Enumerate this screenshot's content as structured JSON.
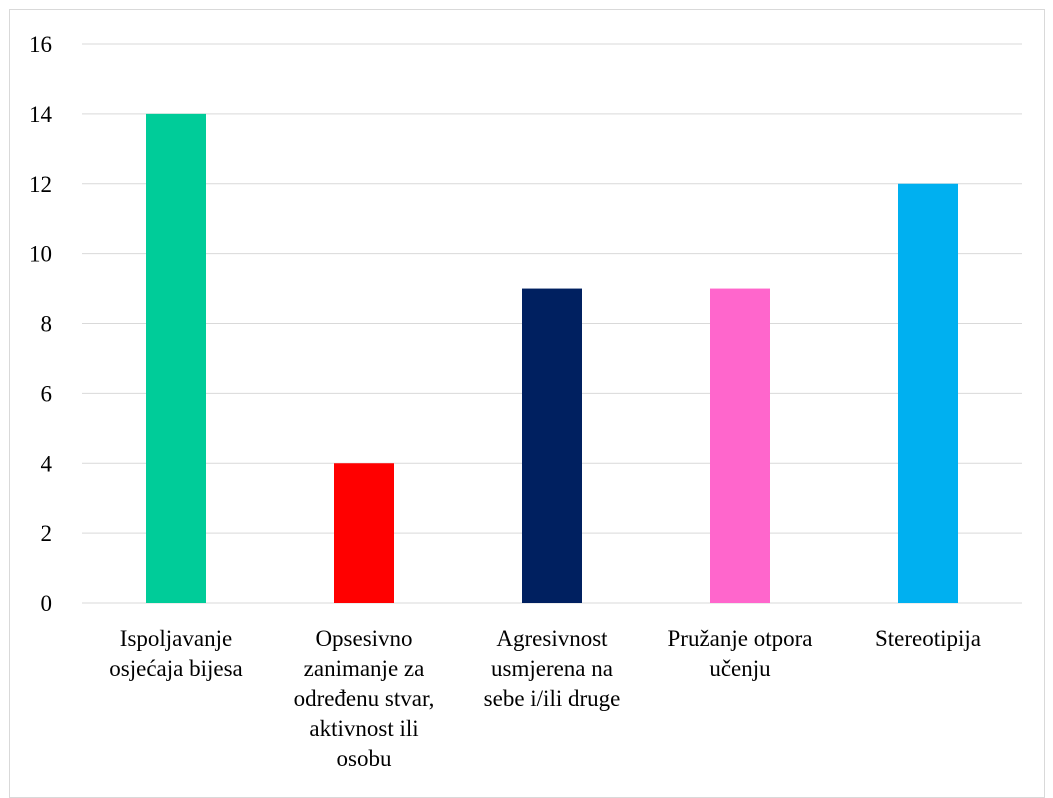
{
  "chart_data": {
    "type": "bar",
    "title": "",
    "xlabel": "",
    "ylabel": "",
    "ylim": [
      0,
      16
    ],
    "yticks": [
      0,
      2,
      4,
      6,
      8,
      10,
      12,
      14,
      16
    ],
    "grid": true,
    "legend": "none",
    "categories": [
      [
        "Ispoljavanje",
        "osjećaja bijesa"
      ],
      [
        "Opsesivno",
        "zanimanje za",
        "određenu stvar,",
        "aktivnost ili",
        "osobu"
      ],
      [
        "Agresivnost",
        "usmjerena na",
        "sebe i/ili druge"
      ],
      [
        "Pružanje otpora",
        "učenju"
      ],
      [
        "Stereotipija"
      ]
    ],
    "values": [
      14,
      4,
      9,
      9,
      12
    ],
    "colors": [
      "#00CC99",
      "#FF0000",
      "#002060",
      "#FF66CC",
      "#00B0F0"
    ]
  }
}
